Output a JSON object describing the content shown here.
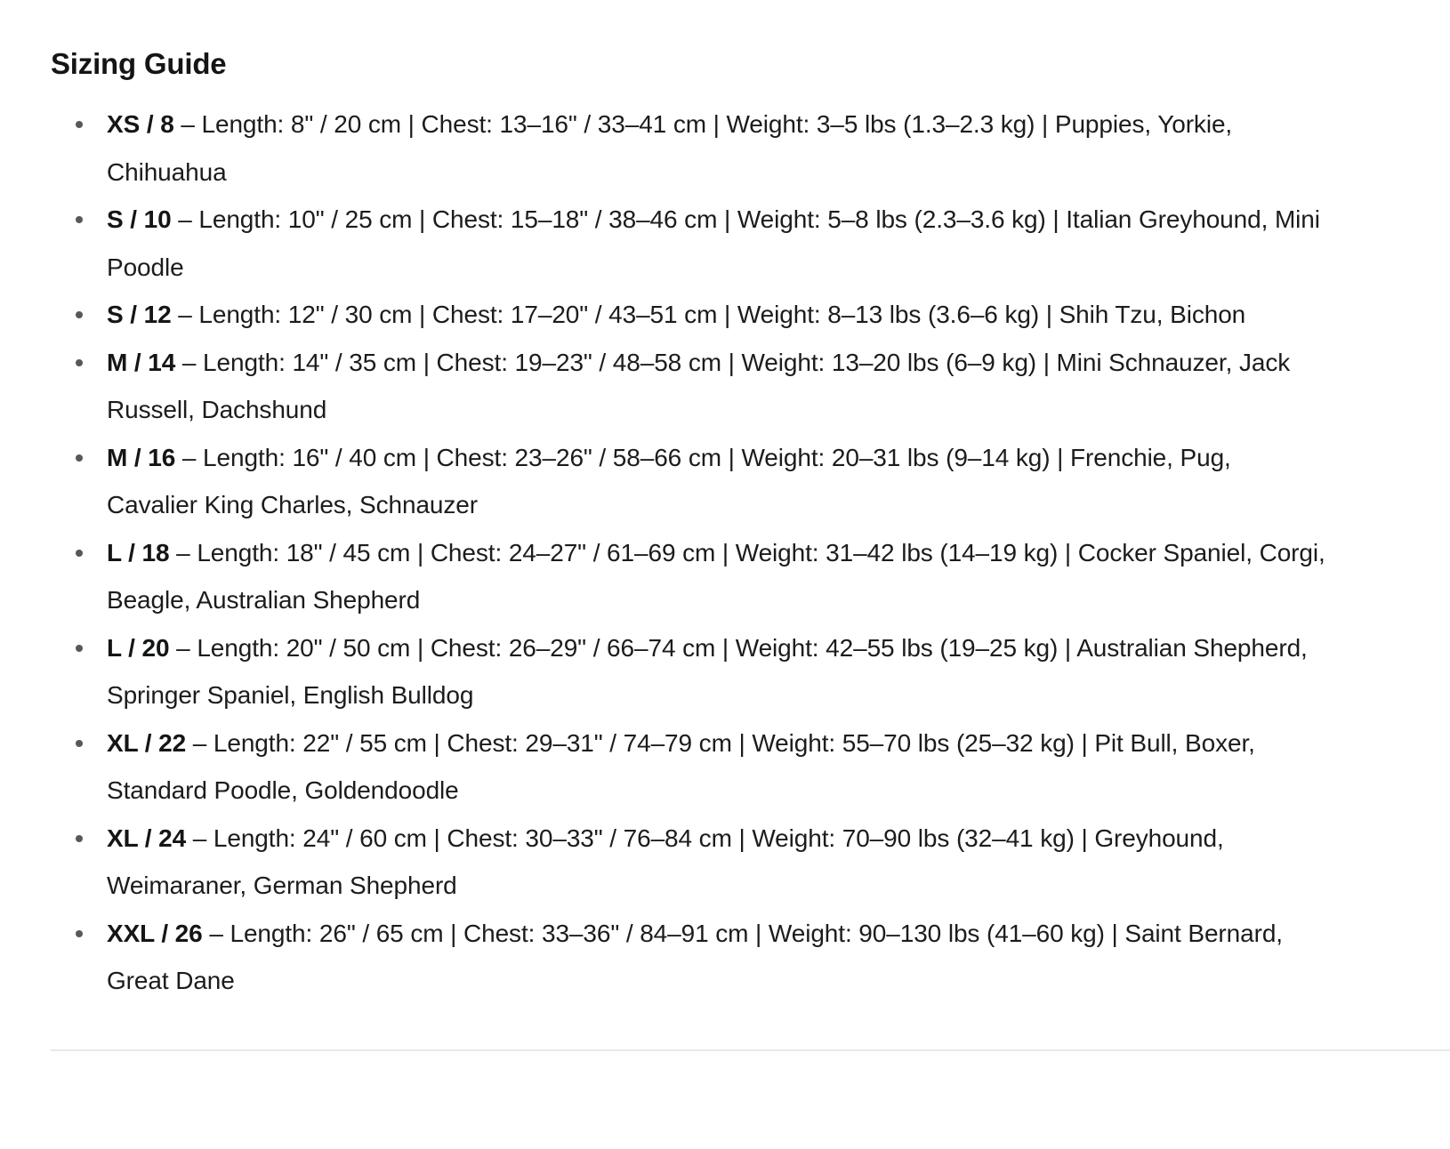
{
  "page": {
    "heading": "Sizing Guide"
  },
  "colors": {
    "text_primary": "#1b1c1e",
    "bullet": "#55585c",
    "divider": "#e8e8ea"
  },
  "sizing_guide": {
    "items": [
      {
        "size": "XS / 8",
        "details": "– Length: 8\" / 20 cm | Chest: 13–16\" / 33–41 cm | Weight: 3–5 lbs (1.3–2.3 kg) | Puppies, Yorkie, Chihuahua"
      },
      {
        "size": "S / 10",
        "details": "– Length: 10\" / 25 cm | Chest: 15–18\" / 38–46 cm | Weight: 5–8 lbs (2.3–3.6 kg) | Italian Greyhound, Mini Poodle"
      },
      {
        "size": "S / 12",
        "details": "– Length: 12\" / 30 cm | Chest: 17–20\" / 43–51 cm | Weight: 8–13 lbs (3.6–6 kg) | Shih Tzu, Bichon"
      },
      {
        "size": "M / 14",
        "details": "– Length: 14\" / 35 cm | Chest: 19–23\" / 48–58 cm | Weight: 13–20 lbs (6–9 kg) | Mini Schnauzer, Jack Russell, Dachshund"
      },
      {
        "size": "M / 16",
        "details": "– Length: 16\" / 40 cm | Chest: 23–26\" / 58–66 cm | Weight: 20–31 lbs (9–14 kg) | Frenchie, Pug, Cavalier King Charles, Schnauzer"
      },
      {
        "size": "L / 18",
        "details": "– Length: 18\" / 45 cm | Chest: 24–27\" / 61–69 cm | Weight: 31–42 lbs (14–19 kg) | Cocker Spaniel, Corgi, Beagle, Australian Shepherd"
      },
      {
        "size": "L / 20",
        "details": "– Length: 20\" / 50 cm | Chest: 26–29\" / 66–74 cm | Weight: 42–55 lbs (19–25 kg) | Australian Shepherd, Springer Spaniel, English Bulldog"
      },
      {
        "size": "XL / 22",
        "details": "– Length: 22\" / 55 cm | Chest: 29–31\" / 74–79 cm | Weight: 55–70 lbs (25–32 kg) | Pit Bull, Boxer, Standard Poodle, Goldendoodle"
      },
      {
        "size": "XL / 24",
        "details": "– Length: 24\" / 60 cm | Chest: 30–33\" / 76–84 cm | Weight: 70–90 lbs (32–41 kg) | Greyhound, Weimaraner, German Shepherd"
      },
      {
        "size": "XXL / 26",
        "details": "– Length: 26\" / 65 cm | Chest: 33–36\" / 84–91 cm | Weight: 90–130 lbs (41–60 kg) | Saint Bernard, Great Dane"
      }
    ]
  }
}
